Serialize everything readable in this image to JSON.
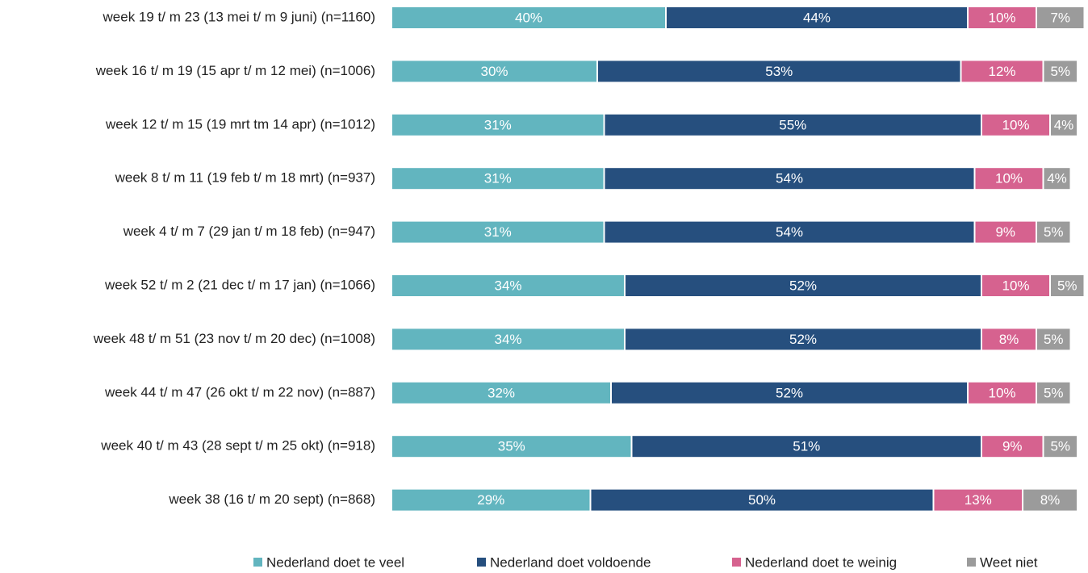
{
  "chart_data": {
    "type": "stacked_bar_horizontal",
    "categories": [
      "week 19 t/ m 23 (13 mei t/ m 9 juni) (n=1160)",
      "week 16 t/ m 19 (15 apr t/ m 12 mei) (n=1006)",
      "week 12 t/ m 15 (19 mrt tm 14 apr) (n=1012)",
      "week 8 t/ m 11 (19 feb t/ m 18 mrt) (n=937)",
      "week 4 t/ m 7 (29 jan t/ m 18 feb) (n=947)",
      "week 52 t/ m 2 (21 dec t/ m 17 jan) (n=1066)",
      "week 48 t/ m 51 (23 nov t/ m 20 dec) (n=1008)",
      "week 44 t/ m 47 (26 okt t/ m 22 nov) (n=887)",
      "week 40 t/ m 43 (28 sept t/ m 25 okt) (n=918)",
      "week 38 (16 t/ m 20 sept) (n=868)"
    ],
    "series": [
      {
        "name": "Nederland doet te veel",
        "color": "#62b5bf",
        "values": [
          40,
          30,
          31,
          31,
          31,
          34,
          34,
          32,
          35,
          29
        ],
        "value_labels": [
          "40%",
          "30%",
          "31%",
          "31%",
          "31%",
          "34%",
          "34%",
          "32%",
          "35%",
          "29%"
        ]
      },
      {
        "name": "Nederland doet voldoende",
        "color": "#264f7e",
        "values": [
          44,
          53,
          55,
          54,
          54,
          52,
          52,
          52,
          51,
          50
        ],
        "value_labels": [
          "44%",
          "53%",
          "55%",
          "54%",
          "54%",
          "52%",
          "52%",
          "52%",
          "51%",
          "50%"
        ]
      },
      {
        "name": "Nederland doet te weinig",
        "color": "#d6628f",
        "values": [
          10,
          12,
          10,
          10,
          9,
          10,
          8,
          10,
          9,
          13
        ],
        "value_labels": [
          "10%",
          "12%",
          "10%",
          "10%",
          "9%",
          "10%",
          "8%",
          "10%",
          "9%",
          "13%"
        ]
      },
      {
        "name": "Weet niet",
        "color": "#9b9b9b",
        "values": [
          7,
          5,
          4,
          4,
          5,
          5,
          5,
          5,
          5,
          8
        ],
        "value_labels": [
          "7%",
          "5%",
          "4%",
          "4%",
          "5%",
          "5%",
          "5%",
          "5%",
          "5%",
          "8%"
        ]
      }
    ],
    "xlim": [
      0,
      100
    ],
    "legend": "bottom"
  }
}
